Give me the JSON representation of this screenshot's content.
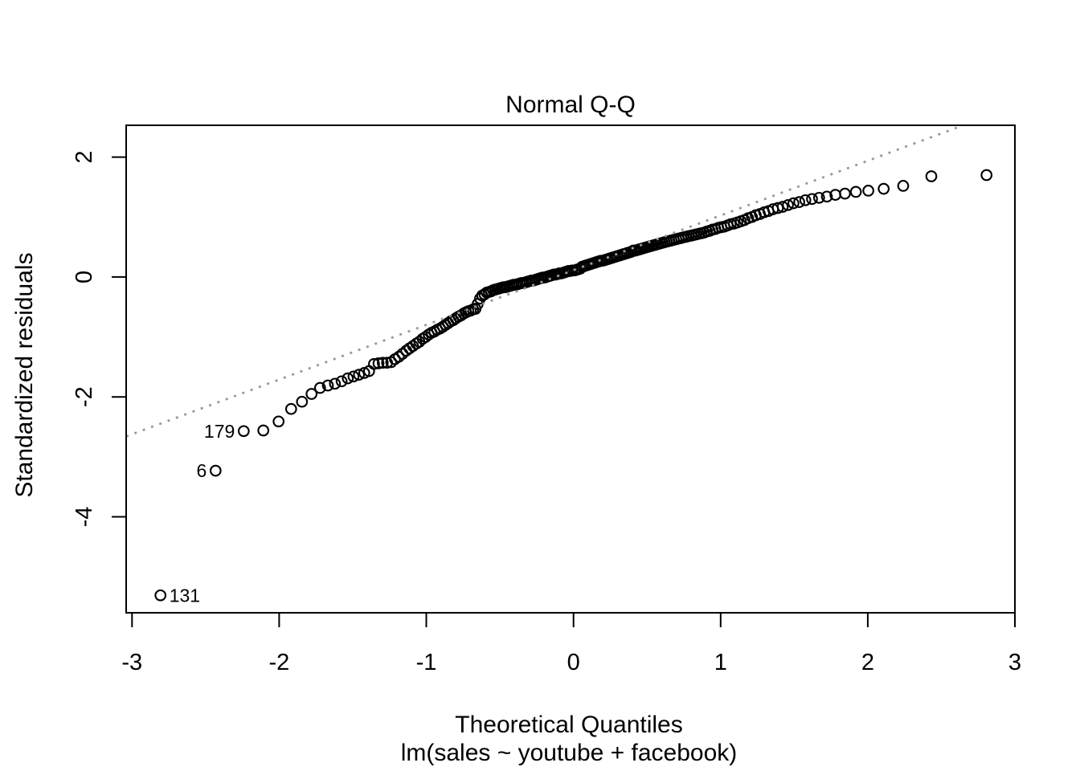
{
  "chart_data": {
    "type": "scatter",
    "subtype": "normal-qq-plot",
    "title": "Normal Q-Q",
    "xlabel": "Theoretical Quantiles",
    "xlabel_sub": "lm(sales ~ youtube + facebook)",
    "ylabel": "Standardized residuals",
    "xlim": [
      -3.04,
      3.0
    ],
    "ylim": [
      -5.6,
      2.53
    ],
    "x_ticks": {
      "values": [
        -3,
        -2,
        -1,
        0,
        1,
        2,
        3
      ],
      "labels": [
        "-3",
        "-2",
        "-1",
        "0",
        "1",
        "2",
        "3"
      ]
    },
    "y_ticks": {
      "values": [
        2,
        0,
        -2,
        -4
      ],
      "labels": [
        "2",
        "0",
        "-2",
        "-4"
      ]
    },
    "grid": false,
    "legend": null,
    "marker": {
      "shape": "open-circle",
      "color": "#000000"
    },
    "ref_line": {
      "slope": 0.912,
      "intercept": 0.114,
      "style": "dotted",
      "color": "#999999"
    },
    "labeled_points": [
      {
        "label": "131",
        "x": -2.807,
        "y": -5.31,
        "side": "right"
      },
      {
        "label": "6",
        "x": -2.432,
        "y": -3.23,
        "side": "left"
      },
      {
        "label": "179",
        "x": -2.241,
        "y": -2.57,
        "side": "left"
      }
    ],
    "points": [
      [
        -2.807,
        -5.31
      ],
      [
        -2.432,
        -3.23
      ],
      [
        -2.241,
        -2.57
      ],
      [
        -2.108,
        -2.56
      ],
      [
        -2.004,
        -2.41
      ],
      [
        -1.919,
        -2.2
      ],
      [
        -1.845,
        -2.08
      ],
      [
        -1.78,
        -1.95
      ],
      [
        -1.722,
        -1.85
      ],
      [
        -1.669,
        -1.81
      ],
      [
        -1.621,
        -1.78
      ],
      [
        -1.576,
        -1.74
      ],
      [
        -1.534,
        -1.69
      ],
      [
        -1.495,
        -1.66
      ],
      [
        -1.458,
        -1.63
      ],
      [
        -1.422,
        -1.6
      ],
      [
        -1.389,
        -1.57
      ],
      [
        -1.356,
        -1.45
      ],
      [
        -1.325,
        -1.44
      ],
      [
        -1.296,
        -1.43
      ],
      [
        -1.267,
        -1.43
      ],
      [
        -1.239,
        -1.42
      ],
      [
        -1.213,
        -1.37
      ],
      [
        -1.187,
        -1.33
      ],
      [
        -1.162,
        -1.28
      ],
      [
        -1.137,
        -1.23
      ],
      [
        -1.114,
        -1.19
      ],
      [
        -1.091,
        -1.15
      ],
      [
        -1.068,
        -1.11
      ],
      [
        -1.047,
        -1.08
      ],
      [
        -1.025,
        -1.03
      ],
      [
        -1.005,
        -1.0
      ],
      [
        -0.984,
        -0.96
      ],
      [
        -0.964,
        -0.93
      ],
      [
        -0.945,
        -0.91
      ],
      [
        -0.926,
        -0.88
      ],
      [
        -0.907,
        -0.86
      ],
      [
        -0.888,
        -0.83
      ],
      [
        -0.87,
        -0.8
      ],
      [
        -0.852,
        -0.77
      ],
      [
        -0.834,
        -0.74
      ],
      [
        -0.817,
        -0.72
      ],
      [
        -0.8,
        -0.69
      ],
      [
        -0.781,
        -0.66
      ],
      [
        -0.764,
        -0.64
      ],
      [
        -0.747,
        -0.61
      ],
      [
        -0.731,
        -0.59
      ],
      [
        -0.714,
        -0.57
      ],
      [
        -0.698,
        -0.56
      ],
      [
        -0.682,
        -0.54
      ],
      [
        -0.666,
        -0.53
      ],
      [
        -0.651,
        -0.45
      ],
      [
        -0.635,
        -0.36
      ],
      [
        -0.62,
        -0.31
      ],
      [
        -0.605,
        -0.29
      ],
      [
        -0.59,
        -0.26
      ],
      [
        -0.575,
        -0.25
      ],
      [
        -0.561,
        -0.24
      ],
      [
        -0.546,
        -0.22
      ],
      [
        -0.532,
        -0.21
      ],
      [
        -0.517,
        -0.2
      ],
      [
        -0.503,
        -0.19
      ],
      [
        -0.489,
        -0.18
      ],
      [
        -0.475,
        -0.17
      ],
      [
        -0.461,
        -0.17
      ],
      [
        -0.448,
        -0.16
      ],
      [
        -0.434,
        -0.15
      ],
      [
        -0.42,
        -0.14
      ],
      [
        -0.407,
        -0.13
      ],
      [
        -0.393,
        -0.13
      ],
      [
        -0.38,
        -0.12
      ],
      [
        -0.366,
        -0.11
      ],
      [
        -0.353,
        -0.1
      ],
      [
        -0.34,
        -0.1
      ],
      [
        -0.327,
        -0.09
      ],
      [
        -0.314,
        -0.08
      ],
      [
        -0.3,
        -0.07
      ],
      [
        -0.287,
        -0.06
      ],
      [
        -0.274,
        -0.06
      ],
      [
        -0.261,
        -0.05
      ],
      [
        -0.249,
        -0.04
      ],
      [
        -0.236,
        -0.03
      ],
      [
        -0.223,
        -0.02
      ],
      [
        -0.21,
        -0.01
      ],
      [
        -0.197,
        -0.01
      ],
      [
        -0.185,
        0.0
      ],
      [
        -0.172,
        0.01
      ],
      [
        -0.159,
        0.02
      ],
      [
        -0.147,
        0.03
      ],
      [
        -0.134,
        0.04
      ],
      [
        -0.121,
        0.04
      ],
      [
        -0.109,
        0.05
      ],
      [
        -0.096,
        0.06
      ],
      [
        -0.083,
        0.06
      ],
      [
        -0.071,
        0.07
      ],
      [
        -0.058,
        0.08
      ],
      [
        -0.046,
        0.09
      ],
      [
        -0.033,
        0.1
      ],
      [
        -0.021,
        0.1
      ],
      [
        -0.008,
        0.11
      ],
      [
        0.008,
        0.11
      ],
      [
        0.021,
        0.12
      ],
      [
        0.033,
        0.13
      ],
      [
        0.046,
        0.14
      ],
      [
        0.058,
        0.17
      ],
      [
        0.071,
        0.18
      ],
      [
        0.083,
        0.19
      ],
      [
        0.096,
        0.2
      ],
      [
        0.109,
        0.21
      ],
      [
        0.121,
        0.22
      ],
      [
        0.134,
        0.23
      ],
      [
        0.147,
        0.24
      ],
      [
        0.159,
        0.25
      ],
      [
        0.172,
        0.26
      ],
      [
        0.185,
        0.27
      ],
      [
        0.197,
        0.27
      ],
      [
        0.21,
        0.28
      ],
      [
        0.223,
        0.29
      ],
      [
        0.236,
        0.3
      ],
      [
        0.249,
        0.31
      ],
      [
        0.261,
        0.32
      ],
      [
        0.274,
        0.33
      ],
      [
        0.287,
        0.34
      ],
      [
        0.3,
        0.35
      ],
      [
        0.314,
        0.36
      ],
      [
        0.327,
        0.37
      ],
      [
        0.34,
        0.38
      ],
      [
        0.353,
        0.39
      ],
      [
        0.366,
        0.4
      ],
      [
        0.38,
        0.41
      ],
      [
        0.393,
        0.42
      ],
      [
        0.407,
        0.44
      ],
      [
        0.42,
        0.44
      ],
      [
        0.434,
        0.45
      ],
      [
        0.448,
        0.46
      ],
      [
        0.461,
        0.47
      ],
      [
        0.475,
        0.48
      ],
      [
        0.489,
        0.49
      ],
      [
        0.503,
        0.5
      ],
      [
        0.517,
        0.51
      ],
      [
        0.532,
        0.52
      ],
      [
        0.546,
        0.53
      ],
      [
        0.561,
        0.54
      ],
      [
        0.575,
        0.55
      ],
      [
        0.59,
        0.56
      ],
      [
        0.605,
        0.57
      ],
      [
        0.62,
        0.58
      ],
      [
        0.635,
        0.59
      ],
      [
        0.651,
        0.6
      ],
      [
        0.666,
        0.61
      ],
      [
        0.682,
        0.62
      ],
      [
        0.698,
        0.63
      ],
      [
        0.714,
        0.64
      ],
      [
        0.731,
        0.65
      ],
      [
        0.747,
        0.66
      ],
      [
        0.764,
        0.67
      ],
      [
        0.781,
        0.68
      ],
      [
        0.8,
        0.69
      ],
      [
        0.817,
        0.7
      ],
      [
        0.834,
        0.71
      ],
      [
        0.852,
        0.72
      ],
      [
        0.87,
        0.73
      ],
      [
        0.888,
        0.74
      ],
      [
        0.907,
        0.76
      ],
      [
        0.926,
        0.77
      ],
      [
        0.945,
        0.79
      ],
      [
        0.964,
        0.8
      ],
      [
        0.984,
        0.82
      ],
      [
        1.005,
        0.83
      ],
      [
        1.025,
        0.84
      ],
      [
        1.047,
        0.86
      ],
      [
        1.068,
        0.88
      ],
      [
        1.091,
        0.89
      ],
      [
        1.114,
        0.91
      ],
      [
        1.137,
        0.93
      ],
      [
        1.162,
        0.95
      ],
      [
        1.187,
        0.98
      ],
      [
        1.213,
        1.0
      ],
      [
        1.239,
        1.03
      ],
      [
        1.267,
        1.05
      ],
      [
        1.296,
        1.08
      ],
      [
        1.325,
        1.1
      ],
      [
        1.356,
        1.13
      ],
      [
        1.389,
        1.15
      ],
      [
        1.422,
        1.17
      ],
      [
        1.458,
        1.2
      ],
      [
        1.495,
        1.23
      ],
      [
        1.534,
        1.25
      ],
      [
        1.576,
        1.28
      ],
      [
        1.621,
        1.3
      ],
      [
        1.669,
        1.32
      ],
      [
        1.722,
        1.34
      ],
      [
        1.78,
        1.37
      ],
      [
        1.845,
        1.39
      ],
      [
        1.919,
        1.42
      ],
      [
        2.004,
        1.44
      ],
      [
        2.108,
        1.47
      ],
      [
        2.241,
        1.52
      ],
      [
        2.432,
        1.68
      ],
      [
        2.807,
        1.7
      ]
    ]
  }
}
